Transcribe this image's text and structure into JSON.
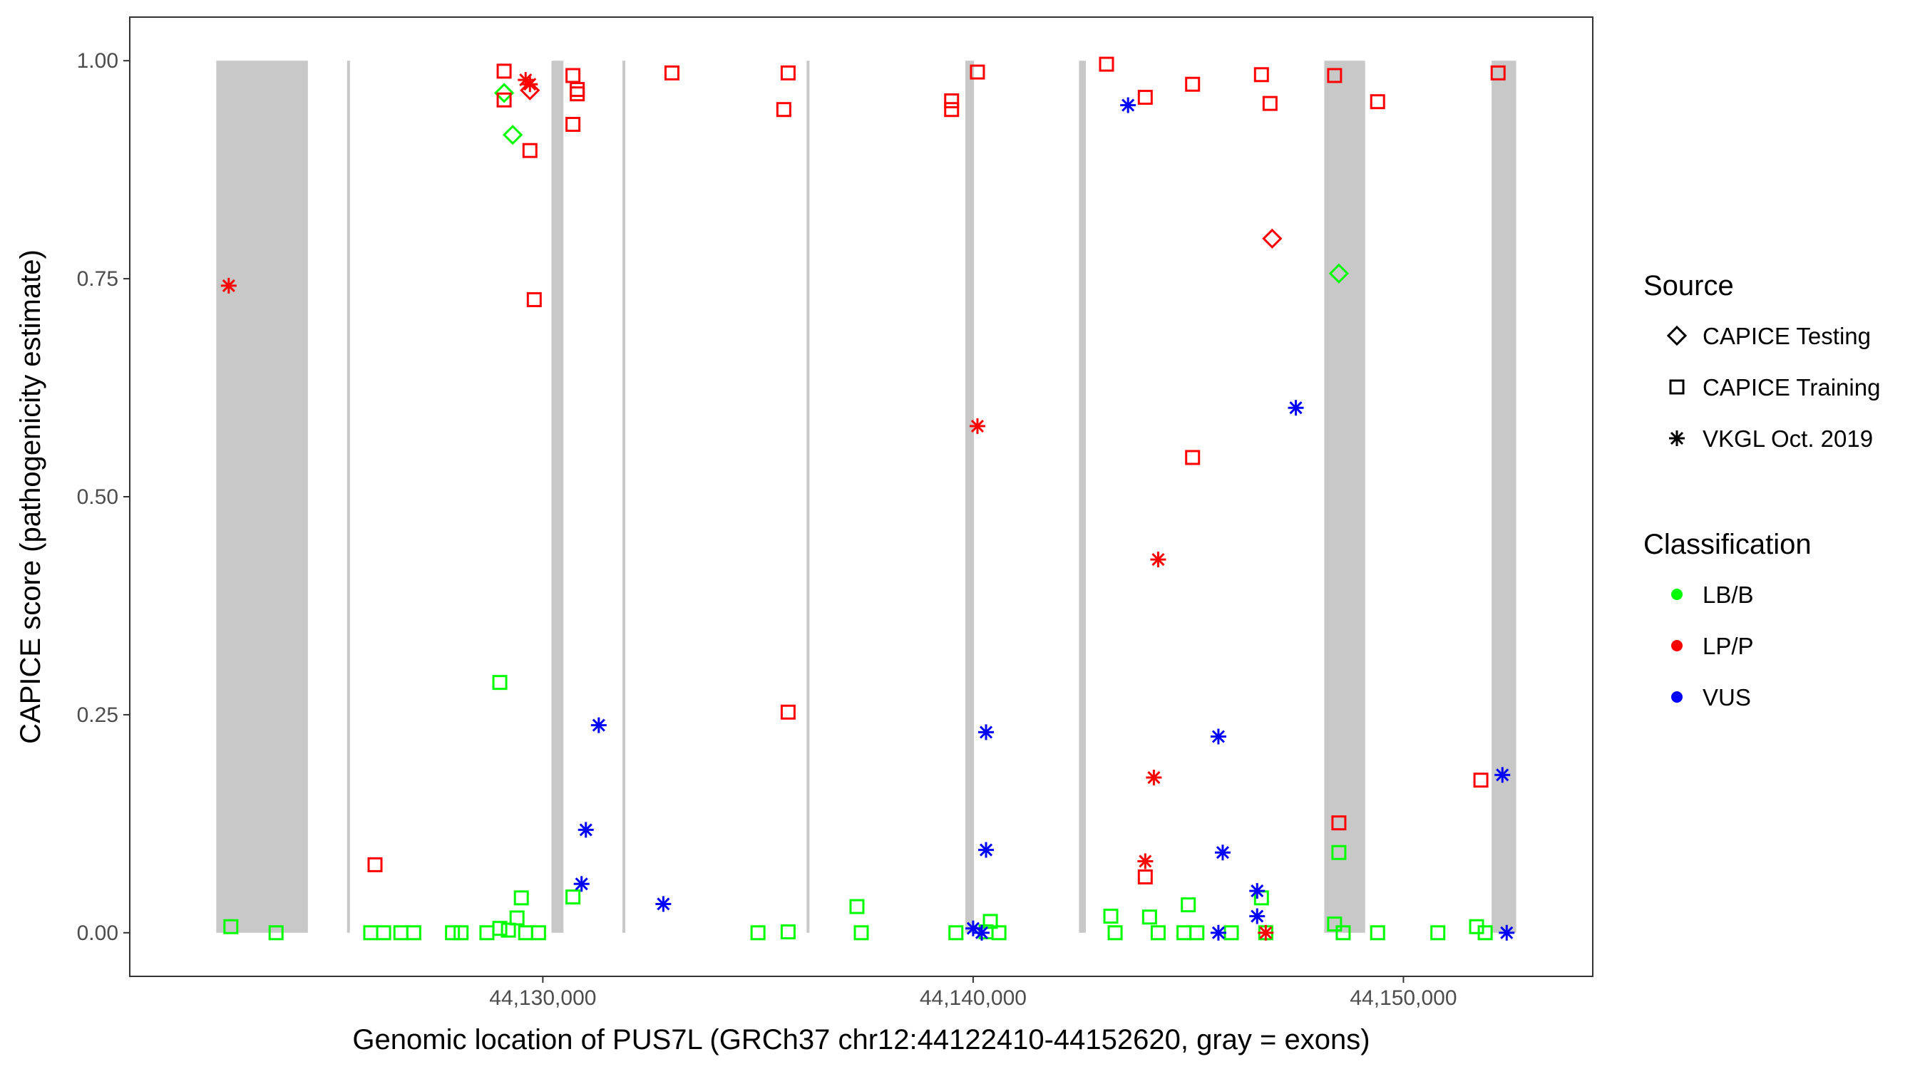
{
  "chart_data": {
    "type": "scatter",
    "title": "",
    "xlabel": "Genomic location of PUS7L (GRCh37 chr12:44122410-44152620, gray = exons)",
    "ylabel": "CAPICE score (pathogenicity estimate)",
    "xlim": [
      44120400,
      44154400
    ],
    "ylim": [
      -0.05,
      1.05
    ],
    "x_ticks": [
      44130000,
      44140000,
      44150000
    ],
    "x_tick_labels": [
      "44,130,000",
      "44,140,000",
      "44,150,000"
    ],
    "y_ticks": [
      0,
      0.25,
      0.5,
      0.75,
      1.0
    ],
    "y_tick_labels": [
      "0.00",
      "0.25",
      "0.50",
      "0.75",
      "1.00"
    ],
    "grid": false,
    "exons": [
      {
        "start": 44122410,
        "end": 44124540
      },
      {
        "start": 44125450,
        "end": 44125510
      },
      {
        "start": 44130200,
        "end": 44130480
      },
      {
        "start": 44131850,
        "end": 44131900
      },
      {
        "start": 44136130,
        "end": 44136180
      },
      {
        "start": 44139820,
        "end": 44140020
      },
      {
        "start": 44142460,
        "end": 44142620
      },
      {
        "start": 44148160,
        "end": 44149110
      },
      {
        "start": 44152050,
        "end": 44152620
      }
    ],
    "legend": {
      "placement": "right",
      "source_title": "Source",
      "source_items": [
        {
          "label": "CAPICE Testing",
          "shape": "diamond"
        },
        {
          "label": "CAPICE Training",
          "shape": "square"
        },
        {
          "label": "VKGL Oct. 2019",
          "shape": "star"
        }
      ],
      "class_title": "Classification",
      "class_items": [
        {
          "label": "LB/B",
          "color": "#00ff00"
        },
        {
          "label": "LP/P",
          "color": "#ff0000"
        },
        {
          "label": "VUS",
          "color": "#0000ff"
        }
      ]
    },
    "series": [
      {
        "source": "CAPICE Testing",
        "classification": "LB/B",
        "shape": "diamond",
        "color": "#00ff00",
        "points": [
          [
            44129100,
            0.963
          ],
          [
            44129300,
            0.915
          ],
          [
            44148500,
            0.756
          ]
        ]
      },
      {
        "source": "CAPICE Testing",
        "classification": "LP/P",
        "shape": "diamond",
        "color": "#ff0000",
        "points": [
          [
            44129700,
            0.966
          ],
          [
            44146950,
            0.796
          ]
        ]
      },
      {
        "source": "CAPICE Training",
        "classification": "LB/B",
        "shape": "square",
        "color": "#00ff00",
        "points": [
          [
            44122750,
            0.007
          ],
          [
            44123800,
            0.0
          ],
          [
            44126000,
            0.0
          ],
          [
            44126300,
            0.0
          ],
          [
            44126700,
            0.0
          ],
          [
            44127000,
            0.0
          ],
          [
            44127900,
            0.0
          ],
          [
            44128100,
            0.0
          ],
          [
            44128700,
            0.0
          ],
          [
            44129000,
            0.287
          ],
          [
            44129000,
            0.005
          ],
          [
            44129200,
            0.003
          ],
          [
            44129400,
            0.017
          ],
          [
            44129500,
            0.04
          ],
          [
            44129600,
            0.0
          ],
          [
            44129900,
            0.0
          ],
          [
            44130700,
            0.041
          ],
          [
            44135000,
            0.0
          ],
          [
            44135700,
            0.001
          ],
          [
            44137300,
            0.03
          ],
          [
            44137400,
            0.0
          ],
          [
            44139600,
            0.0
          ],
          [
            44140300,
            0.001
          ],
          [
            44140400,
            0.013
          ],
          [
            44140600,
            0.0
          ],
          [
            44143200,
            0.019
          ],
          [
            44143300,
            0.0
          ],
          [
            44144100,
            0.018
          ],
          [
            44144300,
            0.0
          ],
          [
            44144900,
            0.0
          ],
          [
            44145000,
            0.032
          ],
          [
            44145200,
            0.0
          ],
          [
            44146000,
            0.0
          ],
          [
            44146700,
            0.04
          ],
          [
            44146800,
            0.0
          ],
          [
            44148400,
            0.01
          ],
          [
            44148500,
            0.092
          ],
          [
            44148600,
            0.0
          ],
          [
            44149400,
            0.0
          ],
          [
            44150800,
            0.0
          ],
          [
            44151700,
            0.007
          ],
          [
            44151900,
            0.0
          ]
        ]
      },
      {
        "source": "CAPICE Training",
        "classification": "LP/P",
        "shape": "square",
        "color": "#ff0000",
        "points": [
          [
            44126100,
            0.078
          ],
          [
            44129100,
            0.988
          ],
          [
            44129100,
            0.955
          ],
          [
            44129700,
            0.897
          ],
          [
            44129800,
            0.726
          ],
          [
            44130700,
            0.983
          ],
          [
            44130800,
            0.967
          ],
          [
            44130700,
            0.927
          ],
          [
            44130800,
            0.962
          ],
          [
            44133000,
            0.986
          ],
          [
            44135600,
            0.944
          ],
          [
            44135700,
            0.986
          ],
          [
            44135700,
            0.253
          ],
          [
            44139500,
            0.954
          ],
          [
            44139500,
            0.944
          ],
          [
            44140100,
            0.987
          ],
          [
            44143100,
            0.996
          ],
          [
            44144000,
            0.958
          ],
          [
            44144000,
            0.064
          ],
          [
            44145100,
            0.973
          ],
          [
            44145100,
            0.545
          ],
          [
            44146700,
            0.984
          ],
          [
            44146900,
            0.951
          ],
          [
            44148400,
            0.983
          ],
          [
            44148500,
            0.126
          ],
          [
            44149400,
            0.953
          ],
          [
            44151800,
            0.175
          ],
          [
            44152200,
            0.986
          ]
        ]
      },
      {
        "source": "VKGL Oct. 2019",
        "classification": "LP/P",
        "shape": "star",
        "color": "#ff0000",
        "points": [
          [
            44122700,
            0.742
          ],
          [
            44129600,
            0.978
          ],
          [
            44129700,
            0.973
          ],
          [
            44140100,
            0.581
          ],
          [
            44144300,
            0.428
          ],
          [
            44144200,
            0.178
          ],
          [
            44144000,
            0.082
          ],
          [
            44146800,
            0.0
          ]
        ]
      },
      {
        "source": "VKGL Oct. 2019",
        "classification": "VUS",
        "shape": "star",
        "color": "#0000ff",
        "points": [
          [
            44131300,
            0.238
          ],
          [
            44131000,
            0.118
          ],
          [
            44130900,
            0.056
          ],
          [
            44132800,
            0.033
          ],
          [
            44140300,
            0.23
          ],
          [
            44140300,
            0.095
          ],
          [
            44140200,
            0.0
          ],
          [
            44140000,
            0.005
          ],
          [
            44143600,
            0.949
          ],
          [
            44147500,
            0.602
          ],
          [
            44145700,
            0.225
          ],
          [
            44145800,
            0.092
          ],
          [
            44145700,
            0.0
          ],
          [
            44146600,
            0.048
          ],
          [
            44146600,
            0.019
          ],
          [
            44152300,
            0.181
          ],
          [
            44152400,
            0.0
          ]
        ]
      }
    ]
  }
}
